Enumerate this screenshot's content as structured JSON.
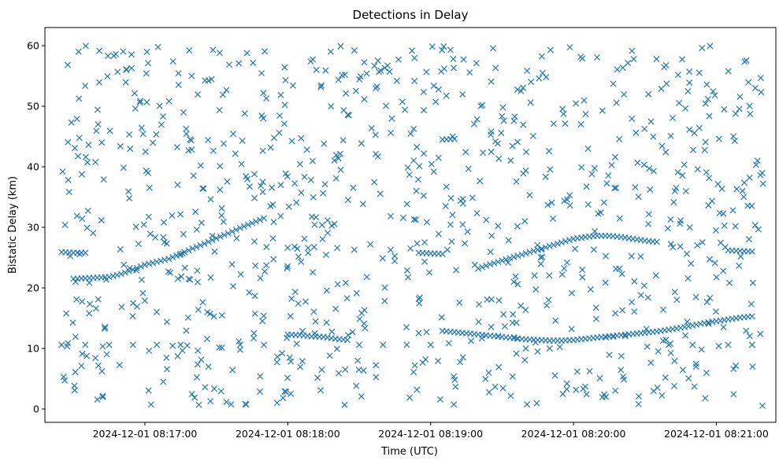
{
  "chart_data": {
    "type": "scatter",
    "title": "Detections in Delay",
    "xlabel": "Time (UTC)",
    "ylabel": "Bistatic Delay (km)",
    "marker": "x",
    "color": "#1f77b4",
    "grid": false,
    "x_unit": "UTC timestamp",
    "xlim": [
      "2024-12-01 08:16:18",
      "2024-12-01 08:21:25"
    ],
    "ylim": [
      -2.2,
      63
    ],
    "x_ticks": [
      "2024-12-01 08:17:00",
      "2024-12-01 08:18:00",
      "2024-12-01 08:19:00",
      "2024-12-01 08:20:00",
      "2024-12-01 08:21:00"
    ],
    "y_ticks": [
      0,
      10,
      20,
      30,
      40,
      50,
      60
    ],
    "series": [
      {
        "role": "track",
        "points": [
          [
            "2024-12-01 08:16:30",
            21.5
          ],
          [
            "2024-12-01 08:16:35",
            21.6
          ],
          [
            "2024-12-01 08:16:40",
            21.7
          ],
          [
            "2024-12-01 08:16:45",
            21.8
          ],
          [
            "2024-12-01 08:16:50",
            22.3
          ],
          [
            "2024-12-01 08:16:55",
            23.0
          ],
          [
            "2024-12-01 08:17:00",
            23.8
          ],
          [
            "2024-12-01 08:17:05",
            24.3
          ],
          [
            "2024-12-01 08:17:10",
            24.8
          ],
          [
            "2024-12-01 08:17:15",
            25.6
          ],
          [
            "2024-12-01 08:17:20",
            26.5
          ],
          [
            "2024-12-01 08:17:25",
            27.3
          ],
          [
            "2024-12-01 08:17:30",
            28.2
          ],
          [
            "2024-12-01 08:17:35",
            29.0
          ],
          [
            "2024-12-01 08:17:40",
            29.9
          ],
          [
            "2024-12-01 08:17:45",
            30.7
          ],
          [
            "2024-12-01 08:17:50",
            31.5
          ]
        ]
      },
      {
        "role": "track",
        "points": [
          [
            "2024-12-01 08:19:20",
            23.2
          ],
          [
            "2024-12-01 08:19:25",
            23.9
          ],
          [
            "2024-12-01 08:19:30",
            24.5
          ],
          [
            "2024-12-01 08:19:35",
            25.1
          ],
          [
            "2024-12-01 08:19:40",
            25.7
          ],
          [
            "2024-12-01 08:19:45",
            26.3
          ],
          [
            "2024-12-01 08:19:50",
            26.9
          ],
          [
            "2024-12-01 08:19:55",
            27.5
          ],
          [
            "2024-12-01 08:20:00",
            28.1
          ],
          [
            "2024-12-01 08:20:05",
            28.4
          ],
          [
            "2024-12-01 08:20:10",
            28.6
          ],
          [
            "2024-12-01 08:20:15",
            28.6
          ],
          [
            "2024-12-01 08:20:20",
            28.4
          ],
          [
            "2024-12-01 08:20:25",
            28.1
          ],
          [
            "2024-12-01 08:20:30",
            27.8
          ],
          [
            "2024-12-01 08:20:35",
            27.6
          ]
        ]
      },
      {
        "role": "track",
        "points": [
          [
            "2024-12-01 08:18:00",
            12.3
          ],
          [
            "2024-12-01 08:18:05",
            12.2
          ],
          [
            "2024-12-01 08:18:10",
            12.0
          ],
          [
            "2024-12-01 08:18:15",
            11.9
          ],
          [
            "2024-12-01 08:18:20",
            11.6
          ],
          [
            "2024-12-01 08:18:25",
            11.4
          ]
        ]
      },
      {
        "role": "track",
        "points": [
          [
            "2024-12-01 08:19:05",
            12.9
          ],
          [
            "2024-12-01 08:19:10",
            12.7
          ],
          [
            "2024-12-01 08:19:15",
            12.5
          ],
          [
            "2024-12-01 08:19:20",
            12.3
          ],
          [
            "2024-12-01 08:19:25",
            12.1
          ],
          [
            "2024-12-01 08:19:30",
            11.9
          ],
          [
            "2024-12-01 08:19:35",
            11.7
          ],
          [
            "2024-12-01 08:19:40",
            11.5
          ],
          [
            "2024-12-01 08:19:45",
            11.4
          ],
          [
            "2024-12-01 08:19:50",
            11.3
          ],
          [
            "2024-12-01 08:19:55",
            11.3
          ],
          [
            "2024-12-01 08:20:00",
            11.4
          ],
          [
            "2024-12-01 08:20:05",
            11.6
          ],
          [
            "2024-12-01 08:20:10",
            11.8
          ],
          [
            "2024-12-01 08:20:15",
            12.0
          ],
          [
            "2024-12-01 08:20:20",
            12.2
          ],
          [
            "2024-12-01 08:20:25",
            12.4
          ],
          [
            "2024-12-01 08:20:30",
            12.6
          ],
          [
            "2024-12-01 08:20:35",
            12.8
          ],
          [
            "2024-12-01 08:20:40",
            13.1
          ],
          [
            "2024-12-01 08:20:45",
            13.4
          ],
          [
            "2024-12-01 08:20:50",
            13.8
          ],
          [
            "2024-12-01 08:20:55",
            14.2
          ],
          [
            "2024-12-01 08:21:00",
            14.5
          ],
          [
            "2024-12-01 08:21:05",
            14.8
          ],
          [
            "2024-12-01 08:21:10",
            15.1
          ],
          [
            "2024-12-01 08:21:15",
            15.3
          ]
        ]
      },
      {
        "role": "track",
        "points": [
          [
            "2024-12-01 08:16:25",
            10.6
          ],
          [
            "2024-12-01 08:16:35",
            10.6
          ],
          [
            "2024-12-01 08:16:45",
            10.6
          ],
          [
            "2024-12-01 08:16:55",
            10.6
          ],
          [
            "2024-12-01 08:17:05",
            10.6
          ],
          [
            "2024-12-01 08:17:15",
            10.6
          ],
          [
            "2024-12-01 08:17:40",
            10.6
          ],
          [
            "2024-12-01 08:17:50",
            10.6
          ],
          [
            "2024-12-01 08:18:30",
            10.6
          ],
          [
            "2024-12-01 08:18:40",
            10.6
          ],
          [
            "2024-12-01 08:18:50",
            10.6
          ],
          [
            "2024-12-01 08:19:00",
            10.6
          ],
          [
            "2024-12-01 08:19:40",
            10.0
          ],
          [
            "2024-12-01 08:19:50",
            10.0
          ],
          [
            "2024-12-01 08:20:40",
            10.6
          ],
          [
            "2024-12-01 08:20:50",
            10.6
          ],
          [
            "2024-12-01 08:21:05",
            10.6
          ],
          [
            "2024-12-01 08:21:15",
            10.6
          ]
        ]
      },
      {
        "role": "track",
        "points": [
          [
            "2024-12-01 08:16:25",
            25.9
          ],
          [
            "2024-12-01 08:16:30",
            25.8
          ],
          [
            "2024-12-01 08:16:35",
            25.8
          ],
          [
            "2024-12-01 08:18:55",
            25.8
          ],
          [
            "2024-12-01 08:19:00",
            25.7
          ],
          [
            "2024-12-01 08:19:05",
            25.6
          ],
          [
            "2024-12-01 08:21:05",
            26.2
          ],
          [
            "2024-12-01 08:21:10",
            26.1
          ],
          [
            "2024-12-01 08:21:15",
            26.0
          ],
          [
            "2024-12-01 08:19:05",
            44.5
          ],
          [
            "2024-12-01 08:19:10",
            44.6
          ]
        ]
      }
    ],
    "clutter": {
      "description_points_count": 900,
      "time_range": [
        "2024-12-01 08:16:25",
        "2024-12-01 08:21:20"
      ],
      "delay_range": [
        0.5,
        60
      ]
    }
  }
}
